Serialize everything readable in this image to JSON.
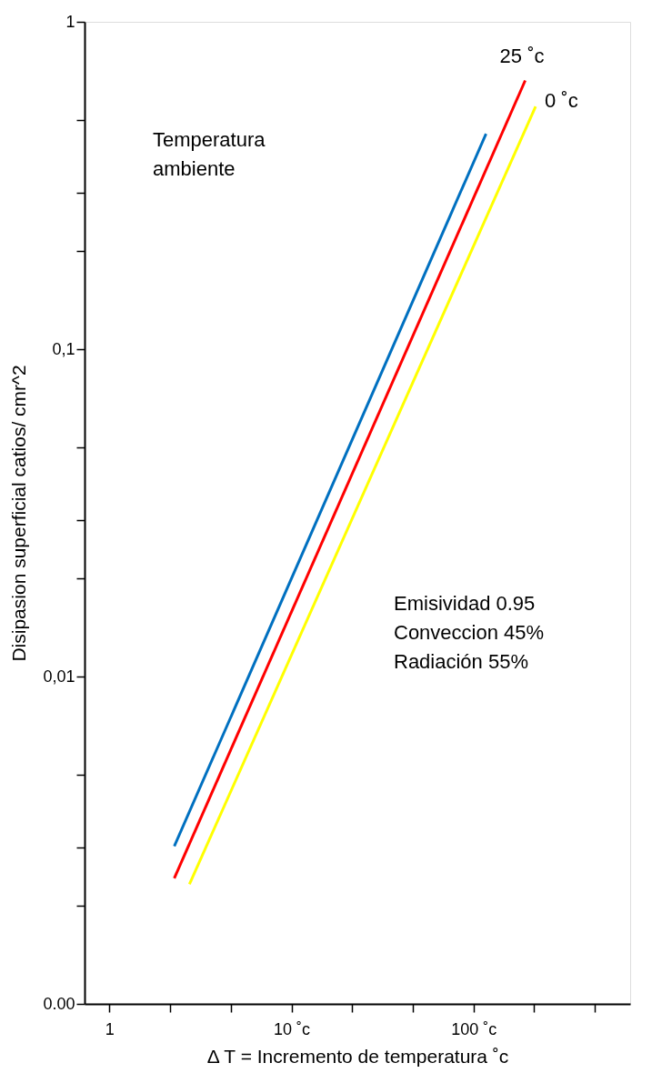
{
  "chart_data": {
    "type": "line",
    "log": "xy",
    "grid": false,
    "legend": false,
    "line_style": "solid",
    "xlabel": "Δ T = Incremento de temperatura  ˚c",
    "ylabel": "Disipasion superficial catios/ cmr^2",
    "xlim": [
      0.73,
      724
    ],
    "ylim": [
      0.001,
      1
    ],
    "xticks": [
      {
        "value": 1,
        "label": "1"
      },
      {
        "value": 2.15,
        "label": null
      },
      {
        "value": 4.64,
        "label": null
      },
      {
        "value": 10,
        "label": "10 ˚c"
      },
      {
        "value": 21.5,
        "label": null
      },
      {
        "value": 46.4,
        "label": null
      },
      {
        "value": 100,
        "label": "100 ˚c"
      },
      {
        "value": 215,
        "label": null
      },
      {
        "value": 464,
        "label": null
      }
    ],
    "yticks": [
      {
        "value": 0.001,
        "label": "0.00"
      },
      {
        "value": 0.002,
        "label": null
      },
      {
        "value": 0.003,
        "label": null
      },
      {
        "value": 0.005,
        "label": null
      },
      {
        "value": 0.01,
        "label": "0,01"
      },
      {
        "value": 0.02,
        "label": null
      },
      {
        "value": 0.03,
        "label": null
      },
      {
        "value": 0.05,
        "label": null
      },
      {
        "value": 0.1,
        "label": "0,1"
      },
      {
        "value": 0.2,
        "label": null
      },
      {
        "value": 0.3,
        "label": null
      },
      {
        "value": 0.5,
        "label": null
      },
      {
        "value": 1,
        "label": "1"
      }
    ],
    "series": [
      {
        "color": "#0070c0",
        "x": [
          2.27,
          117
        ],
        "values": [
          0.00303,
          0.455
        ]
      },
      {
        "name": "25 ˚c",
        "color": "#ff0000",
        "x": [
          2.27,
          192
        ],
        "values": [
          0.00242,
          0.662
        ]
      },
      {
        "name": "0 ˚c",
        "color": "#ffff00",
        "x": [
          2.75,
          219
        ],
        "values": [
          0.00232,
          0.551
        ]
      }
    ],
    "annotations": [
      "Temperatura\nambiente",
      "Emisividad  0.95\nConveccion 45%\nRadiación 55%"
    ]
  }
}
